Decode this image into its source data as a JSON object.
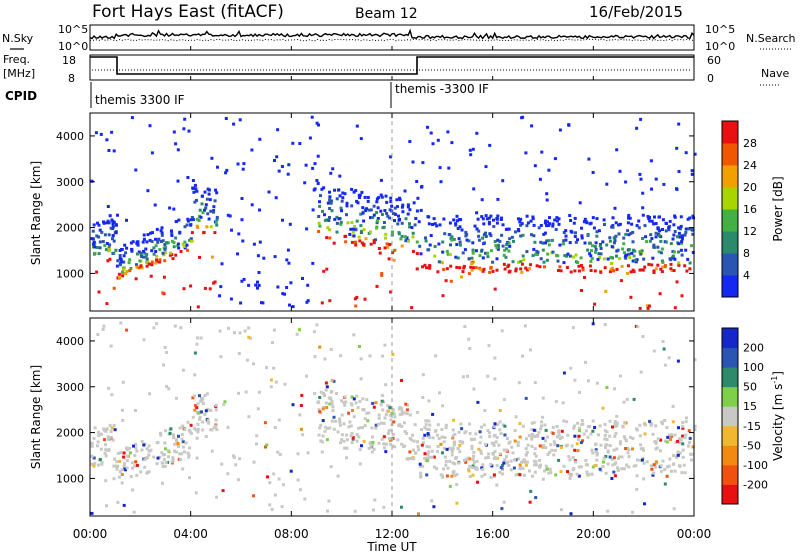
{
  "header": {
    "station": "Fort Hays East (fitACF)",
    "beam": "Beam 12",
    "date": "16/Feb/2015"
  },
  "side_labels": {
    "n_sky": "N.Sky",
    "n_search": "N.Search",
    "freq": "Freq.",
    "freq_unit": "[MHz]",
    "nave": "Nave",
    "cpid": "CPID"
  },
  "status_axes": {
    "noise_left_ticks": [
      "10^5",
      "10^0"
    ],
    "noise_right_ticks": [
      "10^5",
      "10^0"
    ],
    "freq_left_ticks": [
      "18",
      "8"
    ],
    "nave_right_ticks": [
      "60",
      "0"
    ]
  },
  "cpid_labels": [
    "themis 3300 IF",
    "themis -3300 IF"
  ],
  "colors": {
    "power": [
      "#1428f0",
      "#2a55b0",
      "#2c8a6c",
      "#42b042",
      "#a8d400",
      "#f0a000",
      "#f05800",
      "#e81010"
    ],
    "velocity": [
      "#1428c8",
      "#2a55b0",
      "#2e8a6a",
      "#7ed04a",
      "#c8c8c4",
      "#f0b830",
      "#f08a10",
      "#f05010",
      "#e81010"
    ]
  },
  "chart_data": [
    {
      "type": "heatmap",
      "title": "Power",
      "ylabel": "Slant Range [km]",
      "y_ticks": [
        "1000",
        "2000",
        "3000",
        "4000"
      ],
      "ylim": [
        180,
        4500
      ],
      "colorbar_label": "Power [dB]",
      "colorbar_ticks": [
        "4",
        "8",
        "12",
        "16",
        "20",
        "24",
        "28"
      ],
      "colorbar_range": [
        0,
        32
      ]
    },
    {
      "type": "heatmap",
      "title": "Velocity",
      "ylabel": "Slant Range [km]",
      "y_ticks": [
        "1000",
        "2000",
        "3000",
        "4000"
      ],
      "ylim": [
        180,
        4500
      ],
      "colorbar_label": "Velocity [m s",
      "colorbar_label_sup": "-1",
      "colorbar_label_end": "]",
      "colorbar_ticks": [
        "200",
        "100",
        "50",
        "15",
        "-15",
        "-50",
        "-100",
        "-200"
      ]
    }
  ],
  "x_axis": {
    "ticks": [
      "00:00",
      "04:00",
      "08:00",
      "12:00",
      "16:00",
      "20:00",
      "00:00"
    ],
    "label": "Time UT",
    "xlim_hours": [
      0,
      24
    ]
  }
}
